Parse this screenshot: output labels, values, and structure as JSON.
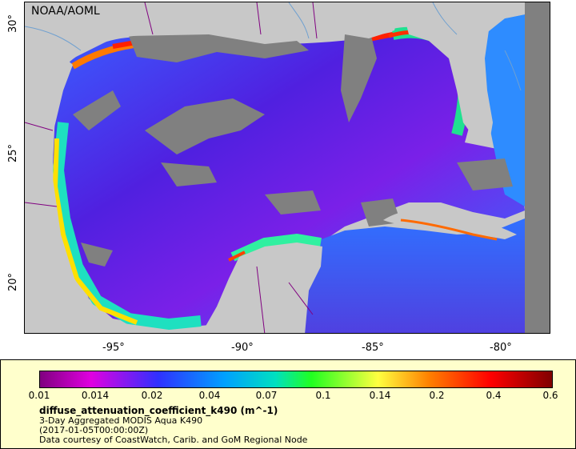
{
  "map": {
    "credit": "NOAA/AOML",
    "x_ticks": [
      "-95°",
      "-90°",
      "-85°",
      "-80°"
    ],
    "y_ticks": [
      "30°",
      "25°",
      "20°"
    ]
  },
  "legend": {
    "colorbar_labels": [
      "0.01",
      "0.014",
      "0.02",
      "0.04",
      "0.07",
      "0.1",
      "0.14",
      "0.2",
      "0.4",
      "0.6"
    ],
    "title": "diffuse_attenuation_coefficient_k490 (m^-1)",
    "line1": "3-Day Aggregated MODIS Aqua K490",
    "line2": "(2017-01-05T00:00:00Z)",
    "line3": "Data courtesy of CoastWatch, Carib. and GoM Regional Node"
  },
  "colors": {
    "land": "#c8c8c8",
    "no_data": "#808080",
    "water_low": "#3030ff",
    "water_high": "#ff0000",
    "boundary": "#800080",
    "rivers": "#6fa0d0"
  }
}
